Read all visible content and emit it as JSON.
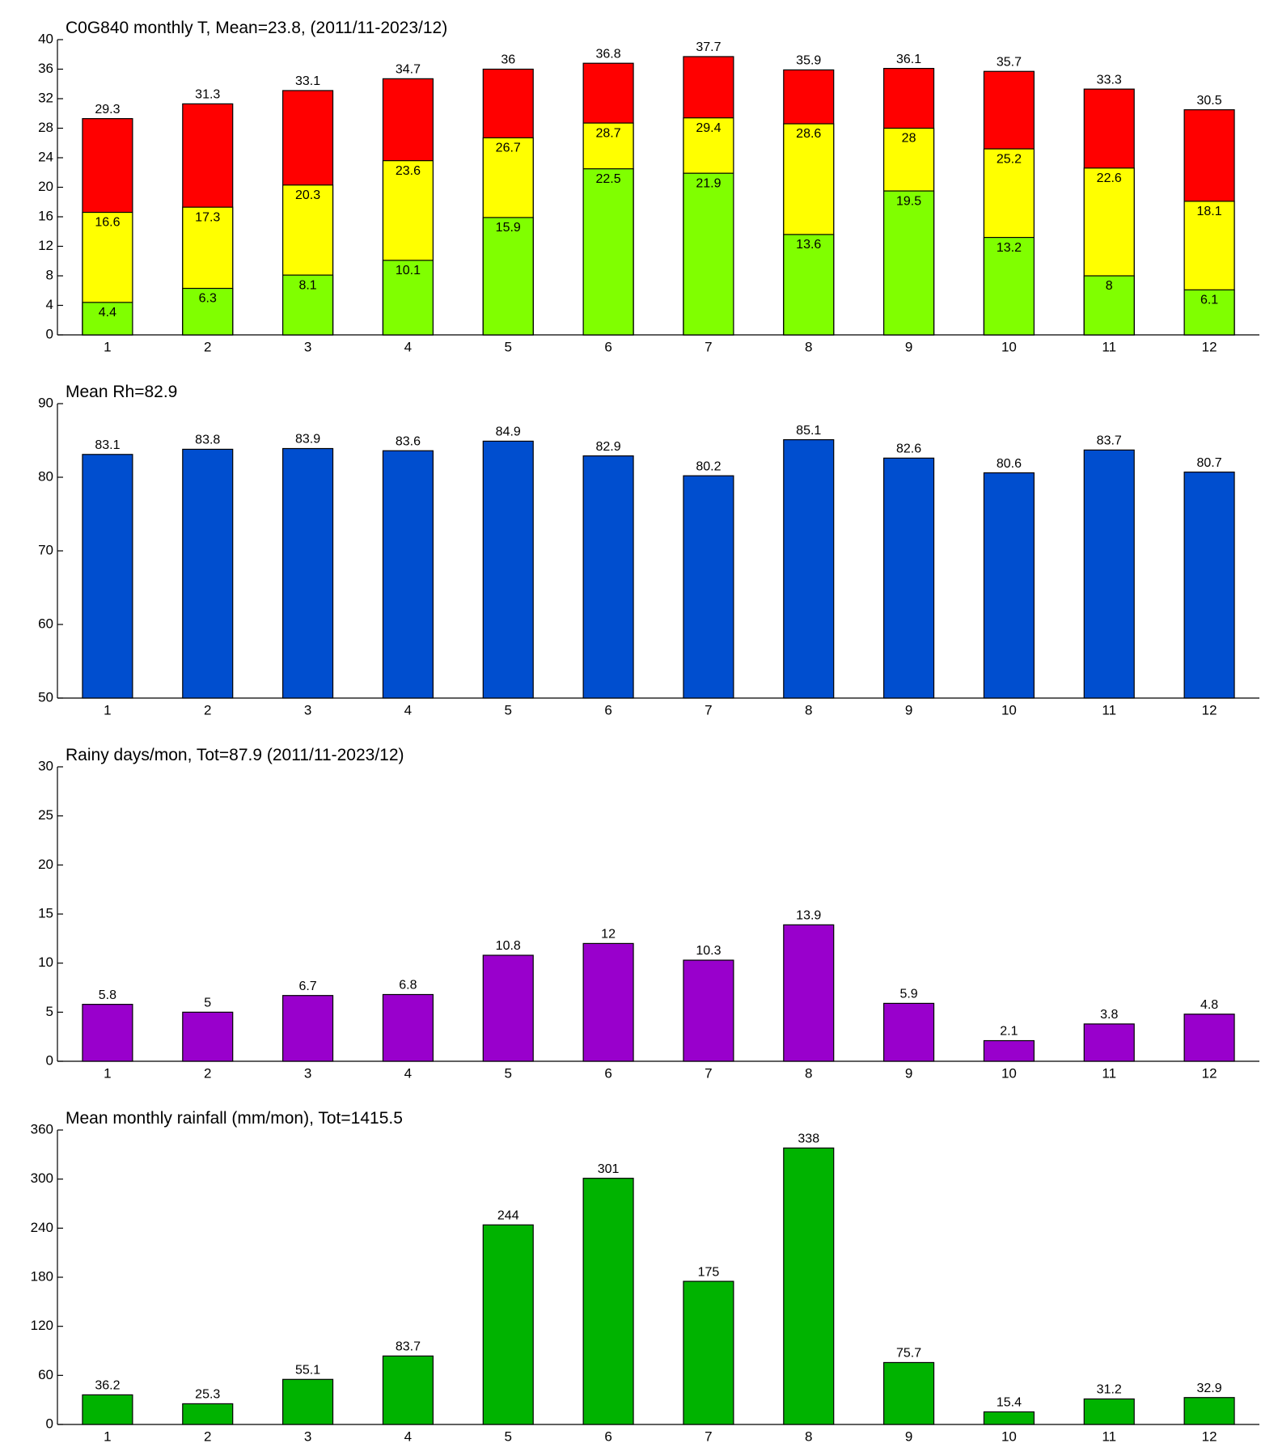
{
  "chart_data": [
    {
      "type": "bar",
      "title": "C0G840 monthly T, Mean=23.8, (2011/11-2023/12)",
      "categories": [
        "1",
        "2",
        "3",
        "4",
        "5",
        "6",
        "7",
        "8",
        "9",
        "10",
        "11",
        "12"
      ],
      "series": [
        {
          "color": "#ff0000",
          "values": [
            29.3,
            31.3,
            33.1,
            34.7,
            36,
            36.8,
            37.7,
            35.9,
            36.1,
            35.7,
            33.3,
            30.5
          ]
        },
        {
          "color": "#ffff00",
          "values": [
            16.6,
            17.3,
            20.3,
            23.6,
            26.7,
            28.7,
            29.4,
            28.6,
            28,
            25.2,
            22.6,
            18.1
          ]
        },
        {
          "color": "#80ff00",
          "values": [
            4.4,
            6.3,
            8.1,
            10.1,
            15.9,
            22.5,
            21.9,
            13.6,
            19.5,
            13.2,
            8,
            6.1
          ]
        }
      ],
      "ylim": [
        0,
        40
      ],
      "yticks": [
        0,
        4,
        8,
        12,
        16,
        20,
        24,
        28,
        32,
        36,
        40
      ]
    },
    {
      "type": "bar",
      "title": "Mean Rh=82.9",
      "categories": [
        "1",
        "2",
        "3",
        "4",
        "5",
        "6",
        "7",
        "8",
        "9",
        "10",
        "11",
        "12"
      ],
      "series": [
        {
          "color": "#004ecf",
          "values": [
            83.1,
            83.8,
            83.9,
            83.6,
            84.9,
            82.9,
            80.2,
            85.1,
            82.6,
            80.6,
            83.7,
            80.7
          ]
        }
      ],
      "ylim": [
        50,
        90
      ],
      "yticks": [
        50,
        60,
        70,
        80,
        90
      ]
    },
    {
      "type": "bar",
      "title": "Rainy days/mon, Tot=87.9 (2011/11-2023/12)",
      "categories": [
        "1",
        "2",
        "3",
        "4",
        "5",
        "6",
        "7",
        "8",
        "9",
        "10",
        "11",
        "12"
      ],
      "series": [
        {
          "color": "#9900cc",
          "values": [
            5.8,
            5,
            6.7,
            6.8,
            10.8,
            12,
            10.3,
            13.9,
            5.9,
            2.1,
            3.8,
            4.8
          ]
        }
      ],
      "ylim": [
        0,
        30
      ],
      "yticks": [
        0,
        5,
        10,
        15,
        20,
        25,
        30
      ]
    },
    {
      "type": "bar",
      "title": "Mean monthly rainfall (mm/mon), Tot=1415.5",
      "categories": [
        "1",
        "2",
        "3",
        "4",
        "5",
        "6",
        "7",
        "8",
        "9",
        "10",
        "11",
        "12"
      ],
      "series": [
        {
          "color": "#00b300",
          "values": [
            36.2,
            25.3,
            55.1,
            83.7,
            244,
            301,
            175,
            338,
            75.7,
            15.4,
            31.2,
            32.9
          ]
        }
      ],
      "ylim": [
        0,
        360
      ],
      "yticks": [
        0,
        60,
        120,
        180,
        240,
        300,
        360
      ]
    }
  ]
}
